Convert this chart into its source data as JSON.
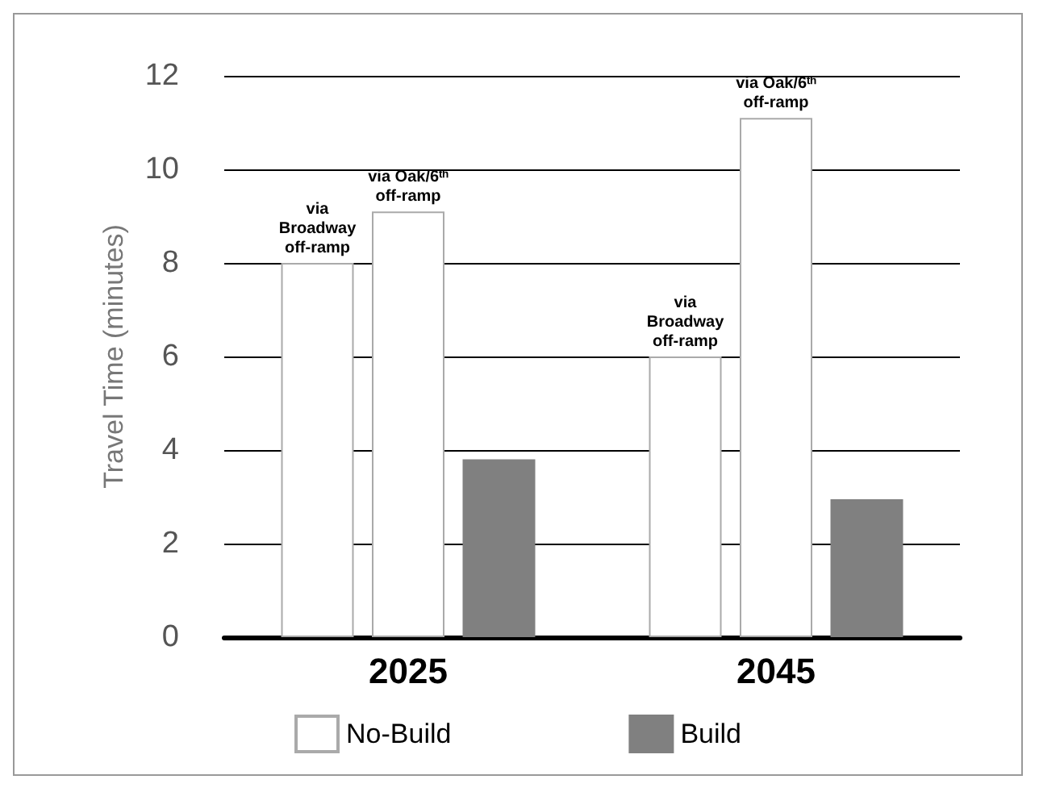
{
  "chart_data": {
    "type": "bar",
    "ylabel": "Travel Time (minutes)",
    "categories": [
      "2025",
      "2045"
    ],
    "series": [
      {
        "name": "No-Build",
        "color": "#ffffff",
        "values": [
          8.0,
          6.0
        ]
      },
      {
        "color": "#ffffff",
        "values": [
          9.1,
          11.1
        ]
      },
      {
        "name": "Build",
        "color": "#808080",
        "values": [
          3.8,
          2.95
        ]
      }
    ],
    "annotations": [
      "via Broadway off-ramp",
      {
        "text": "via Oak/6ᵗʰ off-ramp",
        "x": "2025",
        "y": 9.1
      },
      "via Broadway off-ramp",
      {
        "text": "via Oak/6ᵗʰ off-ramp",
        "x": "2045",
        "y": 11.1
      }
    ],
    "ylim": [
      0,
      12
    ],
    "yticks": [
      0,
      2,
      4,
      6,
      8,
      10,
      12
    ],
    "grid": "y",
    "legend": "bottom"
  }
}
